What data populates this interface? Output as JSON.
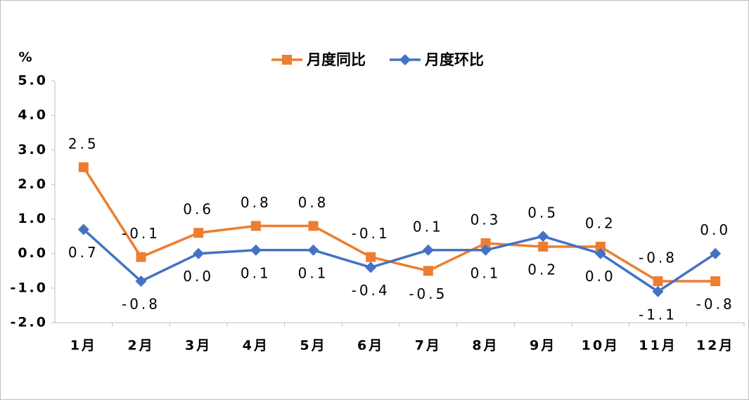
{
  "chart_data": {
    "type": "line",
    "y_label": "%",
    "categories": [
      "1月",
      "2月",
      "3月",
      "4月",
      "5月",
      "6月",
      "7月",
      "8月",
      "9月",
      "10月",
      "11月",
      "12月"
    ],
    "series": [
      {
        "name": "月度同比",
        "color": "#ed7d31",
        "marker": "square",
        "values": [
          2.5,
          -0.1,
          0.6,
          0.8,
          0.8,
          -0.1,
          -0.5,
          0.3,
          0.2,
          0.2,
          -0.8,
          -0.8
        ],
        "value_labels": [
          "2.5",
          "-0.1",
          "0.6",
          "0.8",
          "0.8",
          "-0.1",
          "-0.5",
          "0.3",
          "0.2",
          "0.2",
          "-0.8",
          "-0.8"
        ]
      },
      {
        "name": "月度环比",
        "color": "#4472c4",
        "marker": "diamond",
        "values": [
          0.7,
          -0.8,
          0,
          0.1,
          0.1,
          -0.4,
          0.1,
          0.1,
          0.5,
          0,
          -1.1,
          0
        ],
        "value_labels": [
          "0.7",
          "-0.8",
          "0.0",
          "0.1",
          "0.1",
          "-0.4",
          "0.1",
          "0.1",
          "0.5",
          "0.0",
          "-1.1",
          "0.0"
        ]
      }
    ],
    "ylim": [
      -2,
      5
    ],
    "yticks": [
      {
        "value": -2,
        "label": "-2.0"
      },
      {
        "value": -1,
        "label": "-1.0"
      },
      {
        "value": 0,
        "label": "0.0"
      },
      {
        "value": 1,
        "label": "1.0"
      },
      {
        "value": 2,
        "label": "2.0"
      },
      {
        "value": 3,
        "label": "3.0"
      },
      {
        "value": 4,
        "label": "4.0"
      },
      {
        "value": 5,
        "label": "5.0"
      }
    ],
    "grid": false
  }
}
